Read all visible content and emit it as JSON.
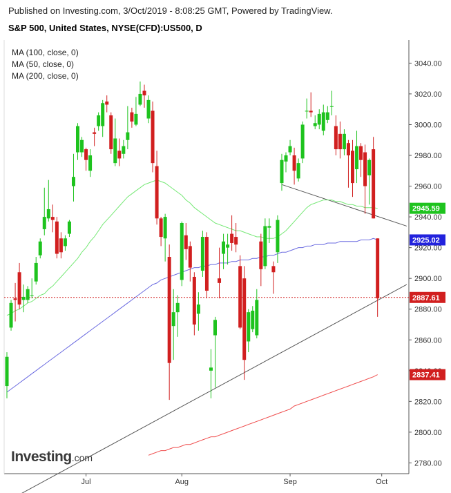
{
  "header": {
    "published": "Published on Investing.com, 3/Oct/2019 - 8:08:25 GMT, Powered by TradingView.",
    "symbol": "S&P 500, United States, NYSE(CFD):US500, D"
  },
  "logo": {
    "main": "Investing",
    "suffix": ".com"
  },
  "colors": {
    "up": "#1ec31e",
    "down": "#d11f1f",
    "ma50": "#74e874",
    "ma100": "#6a6ae0",
    "ma200": "#ef4d4d",
    "line": "#555555",
    "price": "#d11f1f"
  },
  "chart_data": {
    "type": "candlestick",
    "legend": [
      "MA (100, close, 0)",
      "MA (50, close, 0)",
      "MA (200, close, 0)"
    ],
    "y_ticks": [
      2780,
      2800,
      2820,
      2840,
      2860,
      2880,
      2900,
      2920,
      2940,
      2960,
      2980,
      3000,
      3020,
      3040
    ],
    "y_range": [
      2773,
      3055
    ],
    "x_labels": [
      "Jul",
      "Aug",
      "Sep",
      "Oct"
    ],
    "price_labels": [
      {
        "text": "2945.59",
        "value": 2945.59,
        "color": "#1ec31e"
      },
      {
        "text": "2925.02",
        "value": 2925.02,
        "color": "#2222dd"
      },
      {
        "text": "2887.61",
        "value": 2887.61,
        "color": "#d11f1f"
      },
      {
        "text": "2837.41",
        "value": 2837.41,
        "color": "#d11f1f"
      }
    ],
    "last_price": 2887.61,
    "candles": [
      [
        2830,
        2849,
        2822,
        2852
      ],
      [
        2868,
        2884,
        2866,
        2886
      ],
      [
        2887,
        2886,
        2872,
        2897
      ],
      [
        2904,
        2883,
        2880,
        2910
      ],
      [
        2886,
        2888,
        2878,
        2896
      ],
      [
        2886,
        2893,
        2884,
        2895
      ],
      [
        2889,
        2889,
        2887,
        2900
      ],
      [
        2898,
        2910,
        2896,
        2914
      ],
      [
        2915,
        2924,
        2913,
        2926
      ],
      [
        2932,
        2940,
        2928,
        2959
      ],
      [
        2939,
        2945,
        2937,
        2964
      ],
      [
        2940,
        2938,
        2930,
        2948
      ],
      [
        2937,
        2916,
        2913,
        2940
      ],
      [
        2926,
        2917,
        2913,
        2930
      ],
      [
        2921,
        2926,
        2918,
        2928
      ],
      [
        2929,
        2937,
        2927,
        2938
      ],
      [
        2960,
        2966,
        2950,
        2981
      ],
      [
        2982,
        2999,
        2977,
        3001
      ],
      [
        2982,
        2990,
        2979,
        2992
      ],
      [
        2984,
        2977,
        2970,
        2985
      ],
      [
        2970,
        2980,
        2966,
        2984
      ],
      [
        2995,
        2994,
        2986,
        2998
      ],
      [
        2999,
        3006,
        2996,
        3008
      ],
      [
        2999,
        3014,
        2992,
        3016
      ],
      [
        3015,
        3013,
        3008,
        3019
      ],
      [
        3006,
        2984,
        2981,
        3008
      ],
      [
        2975,
        2991,
        2973,
        3004
      ],
      [
        2983,
        2978,
        2973,
        2991
      ],
      [
        2981,
        2986,
        2978,
        2990
      ],
      [
        2990,
        2995,
        2984,
        3012
      ],
      [
        3008,
        3002,
        2998,
        3011
      ],
      [
        3000,
        3007,
        2999,
        3018
      ],
      [
        3013,
        3020,
        3012,
        3028
      ],
      [
        3022,
        3019,
        3011,
        3026
      ],
      [
        3004,
        3016,
        3001,
        3019
      ],
      [
        3009,
        2975,
        2969,
        3015
      ],
      [
        2973,
        2939,
        2935,
        2983
      ],
      [
        2939,
        2927,
        2921,
        2940
      ],
      [
        2926,
        2940,
        2911,
        2942
      ],
      [
        2914,
        2845,
        2821,
        2922
      ],
      [
        2869,
        2878,
        2847,
        2893
      ],
      [
        2878,
        2884,
        2862,
        2889
      ],
      [
        2899,
        2936,
        2895,
        2937
      ],
      [
        2928,
        2919,
        2912,
        2936
      ],
      [
        2921,
        2907,
        2898,
        2924
      ],
      [
        2901,
        2870,
        2863,
        2904
      ],
      [
        2877,
        2883,
        2866,
        2891
      ],
      [
        2905,
        2927,
        2901,
        2931
      ],
      [
        2927,
        2892,
        2887,
        2930
      ],
      [
        2840,
        2842,
        2822,
        2854
      ],
      [
        2863,
        2873,
        2829,
        2875
      ],
      [
        2900,
        2897,
        2887,
        2920
      ],
      [
        2916,
        2924,
        2906,
        2929
      ],
      [
        2920,
        2922,
        2909,
        2929
      ],
      [
        2929,
        2923,
        2918,
        2941
      ],
      [
        2927,
        2922,
        2917,
        2936
      ],
      [
        2908,
        2868,
        2867,
        2915
      ],
      [
        2900,
        2847,
        2834,
        2908
      ],
      [
        2859,
        2878,
        2852,
        2880
      ],
      [
        2867,
        2879,
        2865,
        2882
      ],
      [
        2863,
        2886,
        2861,
        2893
      ],
      [
        2924,
        2906,
        2895,
        2929
      ],
      [
        2908,
        2934,
        2906,
        2939
      ],
      [
        2933,
        2934,
        2923,
        2939
      ],
      [
        2908,
        2904,
        2890,
        2911
      ],
      [
        2917,
        2938,
        2910,
        2941
      ],
      [
        2962,
        2977,
        2957,
        2981
      ],
      [
        2976,
        2980,
        2969,
        2982
      ],
      [
        2982,
        2986,
        2980,
        2990
      ],
      [
        2980,
        2970,
        2961,
        2985
      ],
      [
        2965,
        2975,
        2963,
        2978
      ],
      [
        2978,
        3000,
        2975,
        3002
      ],
      [
        3009,
        3009,
        3004,
        3017
      ],
      [
        3009,
        3008,
        3005,
        3021
      ],
      [
        2999,
        3001,
        2997,
        3006
      ],
      [
        3000,
        3007,
        2997,
        3010
      ],
      [
        2996,
        3008,
        2993,
        3013
      ],
      [
        3003,
        3008,
        3001,
        3012
      ],
      [
        3012,
        3012,
        3006,
        3022
      ],
      [
        2999,
        2984,
        2980,
        3006
      ],
      [
        2994,
        2984,
        2978,
        3002
      ],
      [
        2984,
        2994,
        2980,
        2997
      ],
      [
        2988,
        2980,
        2959,
        2990
      ],
      [
        2983,
        2962,
        2953,
        2990
      ],
      [
        2971,
        2986,
        2962,
        2996
      ],
      [
        2986,
        2977,
        2966,
        2988
      ],
      [
        2982,
        2960,
        2942,
        2987
      ],
      [
        2967,
        2977,
        2948,
        2978
      ],
      [
        2984,
        2939,
        2939,
        2992
      ],
      [
        2926,
        2887,
        2875,
        2926
      ]
    ],
    "ma50": [
      2876,
      2877,
      2879,
      2880,
      2882,
      2884,
      2885,
      2887,
      2889,
      2890,
      2893,
      2895,
      2898,
      2901,
      2904,
      2907,
      2910,
      2913,
      2917,
      2920,
      2924,
      2927,
      2931,
      2935,
      2938,
      2941,
      2944,
      2947,
      2950,
      2953,
      2955,
      2957,
      2959,
      2961,
      2962,
      2963,
      2964,
      2963,
      2962,
      2960,
      2958,
      2956,
      2954,
      2951,
      2949,
      2946,
      2944,
      2942,
      2940,
      2938,
      2936,
      2935,
      2934,
      2933,
      2932,
      2931,
      2931,
      2930,
      2929,
      2928,
      2927,
      2927,
      2926,
      2926,
      2926,
      2927,
      2929,
      2931,
      2934,
      2937,
      2940,
      2943,
      2946,
      2948,
      2949,
      2950,
      2951,
      2951,
      2951,
      2950,
      2950,
      2949,
      2948,
      2948,
      2947,
      2947,
      2946,
      2946,
      2946,
      2945.59
    ],
    "ma100": [
      2826,
      2828,
      2830,
      2832,
      2834,
      2836,
      2838,
      2840,
      2842,
      2844,
      2846,
      2848,
      2850,
      2852,
      2854,
      2856,
      2858,
      2860,
      2862,
      2864,
      2866,
      2868,
      2870,
      2872,
      2874,
      2876,
      2878,
      2880,
      2882,
      2884,
      2886,
      2888,
      2890,
      2892,
      2894,
      2896,
      2897,
      2899,
      2900,
      2901,
      2902,
      2903,
      2904,
      2905,
      2906,
      2907,
      2907,
      2908,
      2908,
      2909,
      2909,
      2910,
      2910,
      2910,
      2911,
      2911,
      2912,
      2912,
      2912,
      2913,
      2913,
      2914,
      2914,
      2915,
      2915,
      2916,
      2917,
      2917,
      2918,
      2919,
      2920,
      2920,
      2921,
      2921,
      2922,
      2922,
      2922,
      2923,
      2923,
      2923,
      2924,
      2924,
      2924,
      2924,
      2924,
      2925,
      2925,
      2925,
      2926,
      2925.02
    ],
    "ma200": [
      2785,
      2786,
      2787,
      2788,
      2788,
      2789,
      2790,
      2790,
      2791,
      2792,
      2792,
      2793,
      2794,
      2795,
      2796,
      2797,
      2797,
      2798,
      2799,
      2800,
      2801,
      2802,
      2803,
      2804,
      2805,
      2806,
      2807,
      2808,
      2809,
      2810,
      2811,
      2812,
      2813,
      2814,
      2815,
      2817,
      2818,
      2819,
      2820,
      2821,
      2822,
      2823,
      2824,
      2825,
      2826,
      2827,
      2828,
      2829,
      2830,
      2831,
      2832,
      2833,
      2834,
      2835,
      2836,
      2837.41
    ],
    "ma200_start_index": 34,
    "trendlines": [
      {
        "from": [
          0,
          2755
        ],
        "to": [
          96,
          2896
        ]
      },
      {
        "from": [
          66,
          2961
        ],
        "to": [
          96,
          2934
        ]
      }
    ]
  }
}
